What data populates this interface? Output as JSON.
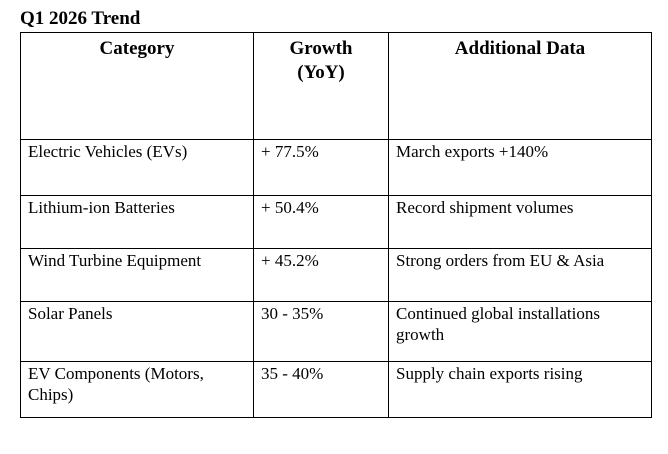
{
  "title": "Q1 2026 Trend",
  "table": {
    "headers": {
      "category": "Category",
      "growth_line1": "Growth",
      "growth_line2": "(YoY)",
      "additional": "Additional Data"
    },
    "rows": [
      {
        "category": "Electric Vehicles (EVs)",
        "growth": "+ 77.5%",
        "additional": "March exports +140%"
      },
      {
        "category": "Lithium-ion Batteries",
        "growth": "+ 50.4%",
        "additional": "Record shipment volumes"
      },
      {
        "category": "Wind Turbine Equipment",
        "growth": "+ 45.2%",
        "additional": "Strong orders from EU & Asia"
      },
      {
        "category": "Solar Panels",
        "growth": "30 - 35%",
        "additional": "Continued global installations growth"
      },
      {
        "category": "EV Components (Motors, Chips)",
        "growth": "35 - 40%",
        "additional": "Supply chain exports rising"
      }
    ]
  }
}
